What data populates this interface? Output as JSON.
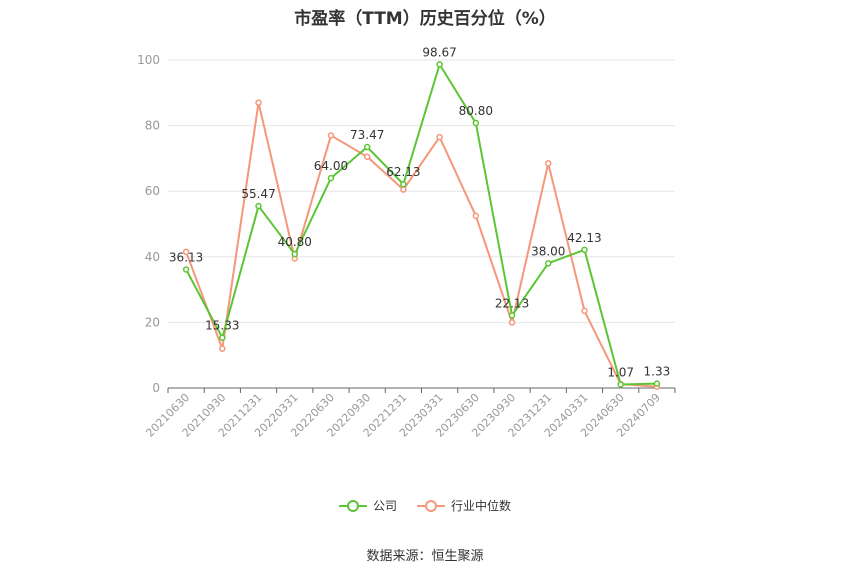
{
  "chart_data": {
    "type": "line",
    "title": "市盈率（TTM）历史百分位（%）",
    "categories": [
      "20210630",
      "20210930",
      "20211231",
      "20220331",
      "20220630",
      "20220930",
      "20221231",
      "20230331",
      "20230630",
      "20230930",
      "20231231",
      "20240331",
      "20240630",
      "20240709"
    ],
    "ylim": [
      0,
      100
    ],
    "yticks": [
      0,
      20,
      40,
      60,
      80,
      100
    ],
    "grid": true,
    "legend_position": "bottom",
    "series": [
      {
        "name": "公司",
        "color": "#5cc534",
        "values": [
          36.13,
          15.33,
          55.47,
          40.8,
          64.0,
          73.47,
          62.13,
          98.67,
          80.8,
          22.13,
          38.0,
          42.13,
          1.07,
          1.33
        ],
        "labels": [
          "36.13",
          "15.33",
          "55.47",
          "40.80",
          "64.00",
          "73.47",
          "62.13",
          "98.67",
          "80.80",
          "22.13",
          "38.00",
          "42.13",
          "1.07",
          "1.33"
        ]
      },
      {
        "name": "行业中位数",
        "color": "#f4977a",
        "values": [
          41.5,
          12.0,
          87.0,
          39.5,
          77.0,
          70.5,
          60.5,
          76.5,
          52.5,
          20.0,
          68.5,
          23.5,
          1.2,
          0.4
        ]
      }
    ],
    "source": "数据来源：恒生聚源"
  }
}
